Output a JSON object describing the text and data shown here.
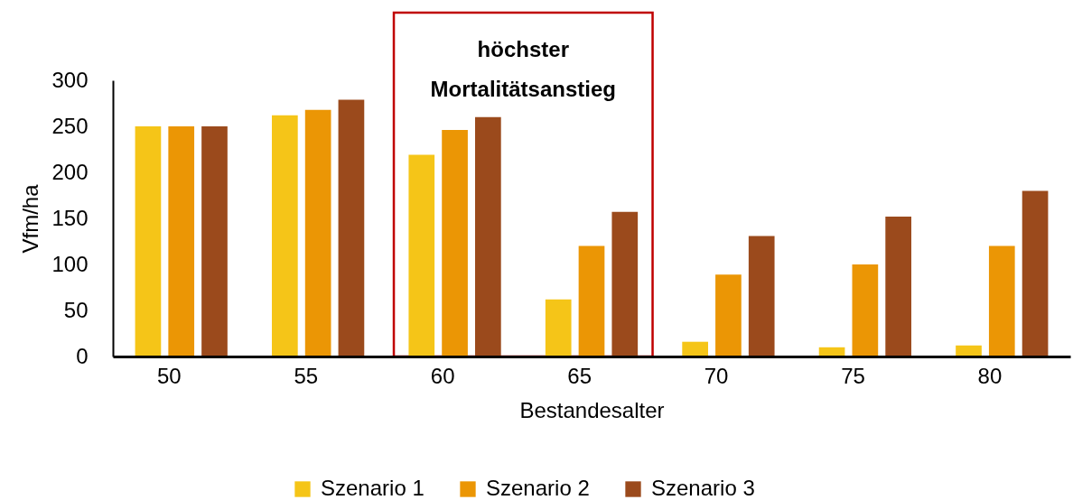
{
  "chart_data": {
    "type": "bar",
    "xlabel": "Bestandesalter",
    "ylabel": "Vfm/ha",
    "categories": [
      "50",
      "55",
      "60",
      "65",
      "70",
      "75",
      "80"
    ],
    "series": [
      {
        "name": "Szenario 1",
        "color": "#f5c518",
        "values": [
          250,
          262,
          219,
          62,
          16,
          10,
          12
        ]
      },
      {
        "name": "Szenario 2",
        "color": "#eb9605",
        "values": [
          250,
          268,
          246,
          120,
          89,
          100,
          120
        ]
      },
      {
        "name": "Szenario 3",
        "color": "#9b4a1c",
        "values": [
          250,
          279,
          260,
          157,
          131,
          152,
          180
        ]
      }
    ],
    "ylim": [
      0,
      300
    ],
    "yticks": [
      0,
      50,
      100,
      150,
      200,
      250,
      300
    ],
    "grid": false,
    "legend": "bottom",
    "bands": [
      {
        "axis": "x",
        "from": "60",
        "to": "65",
        "label": "höchster Mortalitätsanstieg",
        "color": "#c00000"
      }
    ]
  }
}
